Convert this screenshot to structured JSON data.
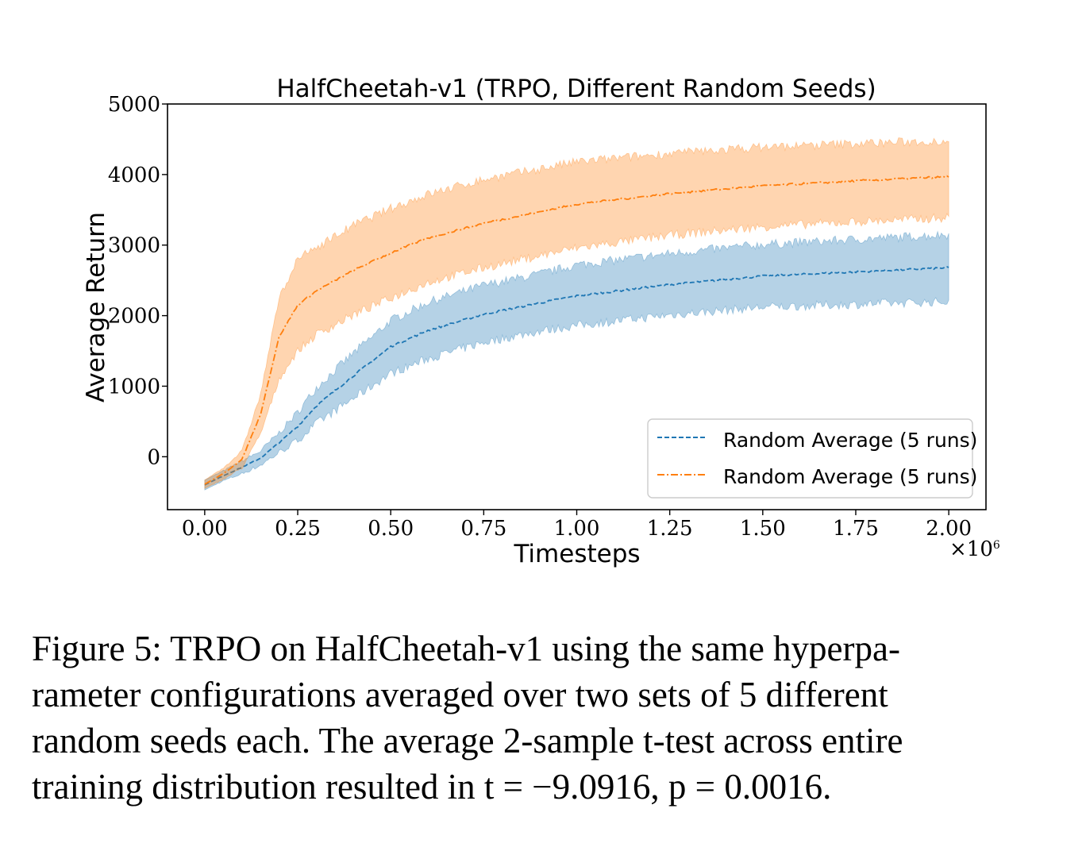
{
  "chart_data": {
    "type": "line",
    "title": "HalfCheetah-v1 (TRPO, Different Random Seeds)",
    "xlabel": "Timesteps",
    "ylabel": "Average Return",
    "x_multiplier": "×10",
    "x_multiplier_exp": "6",
    "xlim": [
      -0.1,
      2.1
    ],
    "ylim": [
      -750,
      5000
    ],
    "xticks": [
      0.0,
      0.25,
      0.5,
      0.75,
      1.0,
      1.25,
      1.5,
      1.75,
      2.0
    ],
    "xtick_labels": [
      "0.00",
      "0.25",
      "0.50",
      "0.75",
      "1.00",
      "1.25",
      "1.50",
      "1.75",
      "2.00"
    ],
    "yticks": [
      0,
      1000,
      2000,
      3000,
      4000,
      5000
    ],
    "ytick_labels": [
      "0",
      "1000",
      "2000",
      "3000",
      "4000",
      "5000"
    ],
    "grid": false,
    "legend_position": "lower-right",
    "x": [
      0.0,
      0.05,
      0.1,
      0.15,
      0.2,
      0.25,
      0.3,
      0.4,
      0.5,
      0.6,
      0.75,
      0.9,
      1.0,
      1.25,
      1.5,
      1.75,
      2.0
    ],
    "series": [
      {
        "name": "Random Average (5 runs)",
        "color": "#1f77b4",
        "line_style": "dashed",
        "values": [
          -400,
          -270,
          -150,
          -20,
          200,
          430,
          720,
          1150,
          1560,
          1790,
          2020,
          2180,
          2280,
          2440,
          2560,
          2620,
          2680
        ],
        "lower": [
          -470,
          -340,
          -240,
          -120,
          60,
          230,
          470,
          830,
          1180,
          1390,
          1620,
          1780,
          1860,
          2010,
          2120,
          2160,
          2200
        ],
        "upper": [
          -330,
          -200,
          -60,
          80,
          340,
          630,
          980,
          1470,
          1930,
          2190,
          2430,
          2590,
          2720,
          2880,
          3010,
          3080,
          3150
        ]
      },
      {
        "name": "Random Average (5 runs)",
        "color": "#ff7f0e",
        "line_style": "dashdot",
        "values": [
          -390,
          -240,
          -40,
          600,
          1700,
          2150,
          2350,
          2640,
          2890,
          3100,
          3310,
          3470,
          3580,
          3730,
          3840,
          3910,
          3970
        ],
        "lower": [
          -450,
          -320,
          -160,
          320,
          1100,
          1500,
          1730,
          2010,
          2250,
          2470,
          2680,
          2850,
          2960,
          3140,
          3260,
          3330,
          3390
        ],
        "upper": [
          -330,
          -160,
          80,
          880,
          2250,
          2800,
          2970,
          3280,
          3520,
          3720,
          3930,
          4080,
          4180,
          4300,
          4390,
          4440,
          4480
        ]
      }
    ]
  },
  "caption": {
    "lines": [
      "Figure 5: TRPO on HalfCheetah-v1 using the same hyperpa-",
      "rameter configurations averaged over two sets of 5 different",
      "random seeds each. The average 2-sample t-test across entire",
      "training distribution resulted in t = −9.0916, p = 0.0016."
    ]
  }
}
